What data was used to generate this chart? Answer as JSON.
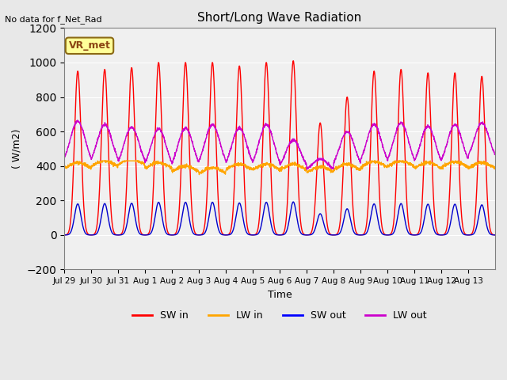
{
  "title": "Short/Long Wave Radiation",
  "xlabel": "Time",
  "ylabel": "( W/m2)",
  "ylim": [
    -200,
    1200
  ],
  "yticks": [
    -200,
    0,
    200,
    400,
    600,
    800,
    1000,
    1200
  ],
  "annotation_text": "No data for f_Net_Rad",
  "box_label": "VR_met",
  "x_tick_labels": [
    "Jul 29",
    "Jul 30",
    "Jul 31",
    "Aug 1",
    "Aug 2",
    "Aug 3",
    "Aug 4",
    "Aug 5",
    "Aug 6",
    "Aug 7",
    "Aug 8",
    "Aug 9",
    "Aug 10",
    "Aug 11",
    "Aug 12",
    "Aug 13"
  ],
  "legend_entries": [
    "SW in",
    "LW in",
    "SW out",
    "LW out"
  ],
  "legend_colors": [
    "#ff0000",
    "#ffa500",
    "#0000ff",
    "#cc00cc"
  ],
  "bg_color": "#e8e8e8",
  "plot_bg_color": "#f0f0f0",
  "sw_in_color": "#ff0000",
  "lw_in_color": "#ffa500",
  "sw_out_color": "#0000cd",
  "lw_out_color": "#cc00cc",
  "n_days": 16,
  "points_per_day": 144,
  "sw_in_peaks": [
    950,
    960,
    970,
    1000,
    1000,
    1000,
    980,
    1000,
    1010,
    650,
    800,
    950,
    960,
    940,
    940,
    920
  ],
  "base_lw_in": [
    370,
    380,
    390,
    370,
    350,
    340,
    360,
    360,
    360,
    345,
    360,
    375,
    380,
    370,
    375,
    370
  ],
  "lw_out_peaks": [
    660,
    640,
    625,
    615,
    620,
    640,
    620,
    640,
    550,
    440,
    600,
    640,
    650,
    630,
    640,
    650
  ],
  "lw_out_base": [
    390,
    390,
    380,
    370,
    370,
    380,
    370,
    370,
    370,
    370,
    375,
    385,
    385,
    380,
    385,
    415
  ]
}
